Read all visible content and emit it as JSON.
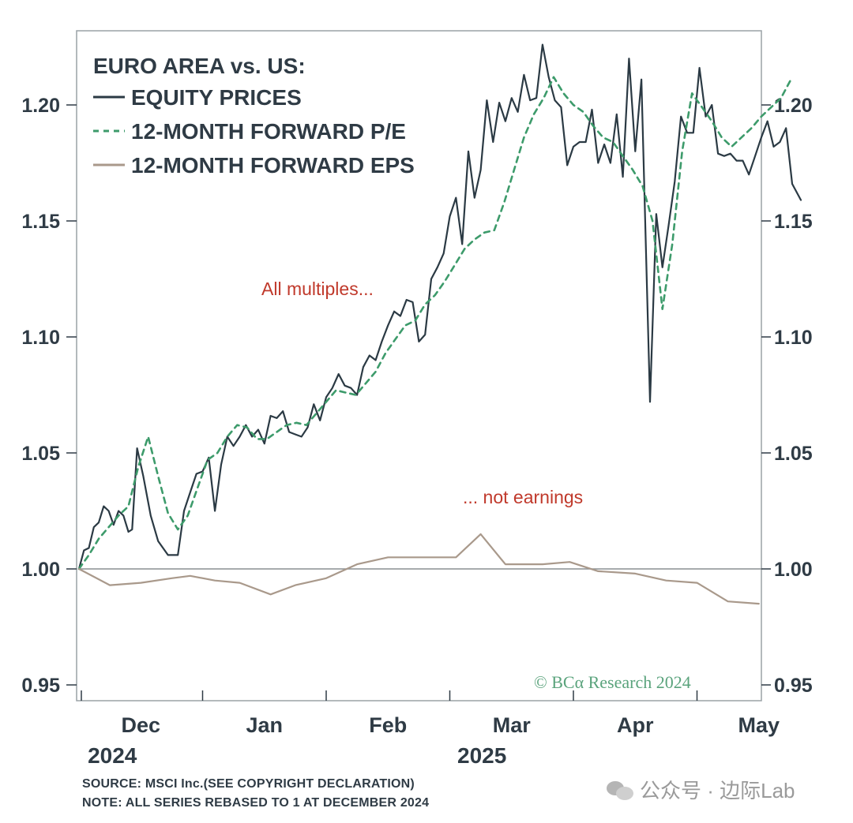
{
  "chart_data": {
    "type": "line",
    "title": "EURO AREA vs. US:",
    "ylim": [
      0.95,
      1.225
    ],
    "y_ticks": [
      0.95,
      1.0,
      1.05,
      1.1,
      1.15,
      1.2
    ],
    "y_tick_labels": [
      "0.95",
      "1.00",
      "1.05",
      "1.10",
      "1.15",
      "1.20"
    ],
    "x_tick_labels": [
      "Dec",
      "Jan",
      "Feb",
      "Mar",
      "Apr",
      "May"
    ],
    "x_year_labels": [
      "2024",
      "2025"
    ],
    "baseline": 1.0,
    "series": [
      {
        "name": "EQUITY PRICES",
        "style": "solid",
        "color": "#2b3a44",
        "points": [
          [
            0,
            1.0
          ],
          [
            0.04,
            1.008
          ],
          [
            0.08,
            1.009
          ],
          [
            0.12,
            1.018
          ],
          [
            0.16,
            1.02
          ],
          [
            0.2,
            1.027
          ],
          [
            0.24,
            1.025
          ],
          [
            0.28,
            1.019
          ],
          [
            0.32,
            1.025
          ],
          [
            0.36,
            1.023
          ],
          [
            0.4,
            1.016
          ],
          [
            0.43,
            1.017
          ],
          [
            0.47,
            1.052
          ],
          [
            0.52,
            1.04
          ],
          [
            0.58,
            1.023
          ],
          [
            0.64,
            1.012
          ],
          [
            0.72,
            1.006
          ],
          [
            0.8,
            1.006
          ],
          [
            0.85,
            1.025
          ],
          [
            0.9,
            1.033
          ],
          [
            0.95,
            1.041
          ],
          [
            1.0,
            1.042
          ],
          [
            1.05,
            1.048
          ],
          [
            1.1,
            1.025
          ],
          [
            1.15,
            1.045
          ],
          [
            1.2,
            1.057
          ],
          [
            1.25,
            1.053
          ],
          [
            1.3,
            1.057
          ],
          [
            1.35,
            1.062
          ],
          [
            1.4,
            1.057
          ],
          [
            1.45,
            1.06
          ],
          [
            1.5,
            1.054
          ],
          [
            1.55,
            1.066
          ],
          [
            1.6,
            1.065
          ],
          [
            1.65,
            1.068
          ],
          [
            1.7,
            1.059
          ],
          [
            1.75,
            1.058
          ],
          [
            1.8,
            1.057
          ],
          [
            1.85,
            1.061
          ],
          [
            1.9,
            1.071
          ],
          [
            1.95,
            1.064
          ],
          [
            2.0,
            1.074
          ],
          [
            2.05,
            1.078
          ],
          [
            2.1,
            1.084
          ],
          [
            2.15,
            1.079
          ],
          [
            2.2,
            1.078
          ],
          [
            2.25,
            1.075
          ],
          [
            2.3,
            1.087
          ],
          [
            2.35,
            1.092
          ],
          [
            2.4,
            1.09
          ],
          [
            2.45,
            1.098
          ],
          [
            2.5,
            1.105
          ],
          [
            2.55,
            1.111
          ],
          [
            2.6,
            1.109
          ],
          [
            2.65,
            1.116
          ],
          [
            2.7,
            1.115
          ],
          [
            2.75,
            1.098
          ],
          [
            2.8,
            1.101
          ],
          [
            2.85,
            1.125
          ],
          [
            2.9,
            1.13
          ],
          [
            2.95,
            1.136
          ],
          [
            3.0,
            1.152
          ],
          [
            3.05,
            1.16
          ],
          [
            3.1,
            1.14
          ],
          [
            3.15,
            1.18
          ],
          [
            3.2,
            1.16
          ],
          [
            3.25,
            1.172
          ],
          [
            3.3,
            1.202
          ],
          [
            3.35,
            1.184
          ],
          [
            3.4,
            1.201
          ],
          [
            3.45,
            1.193
          ],
          [
            3.5,
            1.203
          ],
          [
            3.55,
            1.197
          ],
          [
            3.6,
            1.213
          ],
          [
            3.65,
            1.202
          ],
          [
            3.7,
            1.203
          ],
          [
            3.75,
            1.226
          ],
          [
            3.8,
            1.212
          ],
          [
            3.85,
            1.202
          ],
          [
            3.9,
            1.199
          ],
          [
            3.95,
            1.174
          ],
          [
            4.0,
            1.182
          ],
          [
            4.05,
            1.184
          ],
          [
            4.1,
            1.184
          ],
          [
            4.15,
            1.198
          ],
          [
            4.2,
            1.175
          ],
          [
            4.25,
            1.183
          ],
          [
            4.3,
            1.175
          ],
          [
            4.35,
            1.196
          ],
          [
            4.4,
            1.169
          ],
          [
            4.45,
            1.22
          ],
          [
            4.5,
            1.18
          ],
          [
            4.55,
            1.211
          ],
          [
            4.62,
            1.072
          ],
          [
            4.67,
            1.153
          ],
          [
            4.72,
            1.13
          ],
          [
            4.77,
            1.148
          ],
          [
            4.82,
            1.167
          ],
          [
            4.87,
            1.195
          ],
          [
            4.92,
            1.188
          ],
          [
            4.97,
            1.188
          ],
          [
            5.02,
            1.216
          ],
          [
            5.07,
            1.195
          ],
          [
            5.12,
            1.2
          ],
          [
            5.17,
            1.179
          ],
          [
            5.22,
            1.178
          ],
          [
            5.27,
            1.179
          ],
          [
            5.32,
            1.176
          ],
          [
            5.37,
            1.176
          ],
          [
            5.42,
            1.17
          ],
          [
            5.47,
            1.178
          ],
          [
            5.52,
            1.186
          ],
          [
            5.57,
            1.193
          ],
          [
            5.62,
            1.182
          ],
          [
            5.67,
            1.184
          ],
          [
            5.72,
            1.19
          ],
          [
            5.77,
            1.166
          ],
          [
            5.84,
            1.159
          ]
        ]
      },
      {
        "name": "12-MONTH FORWARD P/E",
        "style": "dashed",
        "color": "#3d9b6b",
        "points": [
          [
            0,
            1.0
          ],
          [
            0.08,
            1.006
          ],
          [
            0.16,
            1.013
          ],
          [
            0.24,
            1.018
          ],
          [
            0.32,
            1.023
          ],
          [
            0.4,
            1.027
          ],
          [
            0.48,
            1.044
          ],
          [
            0.56,
            1.057
          ],
          [
            0.64,
            1.04
          ],
          [
            0.72,
            1.024
          ],
          [
            0.8,
            1.017
          ],
          [
            0.88,
            1.023
          ],
          [
            0.96,
            1.035
          ],
          [
            1.04,
            1.047
          ],
          [
            1.12,
            1.05
          ],
          [
            1.2,
            1.057
          ],
          [
            1.28,
            1.062
          ],
          [
            1.36,
            1.061
          ],
          [
            1.44,
            1.056
          ],
          [
            1.52,
            1.056
          ],
          [
            1.6,
            1.059
          ],
          [
            1.68,
            1.062
          ],
          [
            1.76,
            1.063
          ],
          [
            1.84,
            1.062
          ],
          [
            1.92,
            1.067
          ],
          [
            2.0,
            1.072
          ],
          [
            2.08,
            1.077
          ],
          [
            2.16,
            1.076
          ],
          [
            2.24,
            1.075
          ],
          [
            2.32,
            1.08
          ],
          [
            2.4,
            1.085
          ],
          [
            2.48,
            1.093
          ],
          [
            2.56,
            1.099
          ],
          [
            2.64,
            1.105
          ],
          [
            2.72,
            1.107
          ],
          [
            2.8,
            1.114
          ],
          [
            2.88,
            1.118
          ],
          [
            2.96,
            1.124
          ],
          [
            3.04,
            1.131
          ],
          [
            3.12,
            1.138
          ],
          [
            3.2,
            1.142
          ],
          [
            3.28,
            1.145
          ],
          [
            3.36,
            1.146
          ],
          [
            3.44,
            1.158
          ],
          [
            3.52,
            1.172
          ],
          [
            3.6,
            1.186
          ],
          [
            3.68,
            1.196
          ],
          [
            3.76,
            1.203
          ],
          [
            3.84,
            1.212
          ],
          [
            3.92,
            1.205
          ],
          [
            4.0,
            1.2
          ],
          [
            4.08,
            1.197
          ],
          [
            4.16,
            1.191
          ],
          [
            4.24,
            1.186
          ],
          [
            4.32,
            1.184
          ],
          [
            4.4,
            1.178
          ],
          [
            4.48,
            1.172
          ],
          [
            4.56,
            1.165
          ],
          [
            4.64,
            1.15
          ],
          [
            4.72,
            1.112
          ],
          [
            4.8,
            1.14
          ],
          [
            4.88,
            1.18
          ],
          [
            4.96,
            1.205
          ],
          [
            5.04,
            1.199
          ],
          [
            5.12,
            1.193
          ],
          [
            5.2,
            1.186
          ],
          [
            5.28,
            1.182
          ],
          [
            5.36,
            1.186
          ],
          [
            5.44,
            1.19
          ],
          [
            5.52,
            1.195
          ],
          [
            5.6,
            1.199
          ],
          [
            5.68,
            1.203
          ],
          [
            5.76,
            1.211
          ]
        ]
      },
      {
        "name": "12-MONTH FORWARD EPS",
        "style": "solid",
        "color": "#a9998b",
        "points": [
          [
            0,
            1.0
          ],
          [
            0.25,
            0.993
          ],
          [
            0.5,
            0.994
          ],
          [
            0.75,
            0.996
          ],
          [
            0.9,
            0.997
          ],
          [
            1.1,
            0.995
          ],
          [
            1.3,
            0.994
          ],
          [
            1.55,
            0.989
          ],
          [
            1.75,
            0.993
          ],
          [
            2.0,
            0.996
          ],
          [
            2.25,
            1.002
          ],
          [
            2.5,
            1.005
          ],
          [
            2.75,
            1.005
          ],
          [
            3.05,
            1.005
          ],
          [
            3.25,
            1.015
          ],
          [
            3.45,
            1.002
          ],
          [
            3.75,
            1.002
          ],
          [
            3.97,
            1.003
          ],
          [
            4.2,
            0.999
          ],
          [
            4.5,
            0.998
          ],
          [
            4.75,
            0.995
          ],
          [
            5.0,
            0.994
          ],
          [
            5.25,
            0.986
          ],
          [
            5.5,
            0.985
          ]
        ]
      }
    ],
    "annotations": [
      "All multiples...",
      "... not earnings"
    ]
  },
  "legend": {
    "title": "EURO AREA vs. US:",
    "items": [
      "EQUITY PRICES",
      "12-MONTH FORWARD P/E",
      "12-MONTH FORWARD EPS"
    ]
  },
  "copyright": "© BCα Research 2024",
  "footer": {
    "source": "SOURCE: MSCI Inc.(SEE COPYRIGHT DECLARATION)",
    "note": "NOTE: ALL SERIES REBASED TO 1 AT DECEMBER 2024"
  },
  "watermark": "公众号 · 边际Lab",
  "colors": {
    "equity": "#2b3a44",
    "pe": "#3d9b6b",
    "eps": "#a9998b",
    "annotation": "#c0392b"
  }
}
